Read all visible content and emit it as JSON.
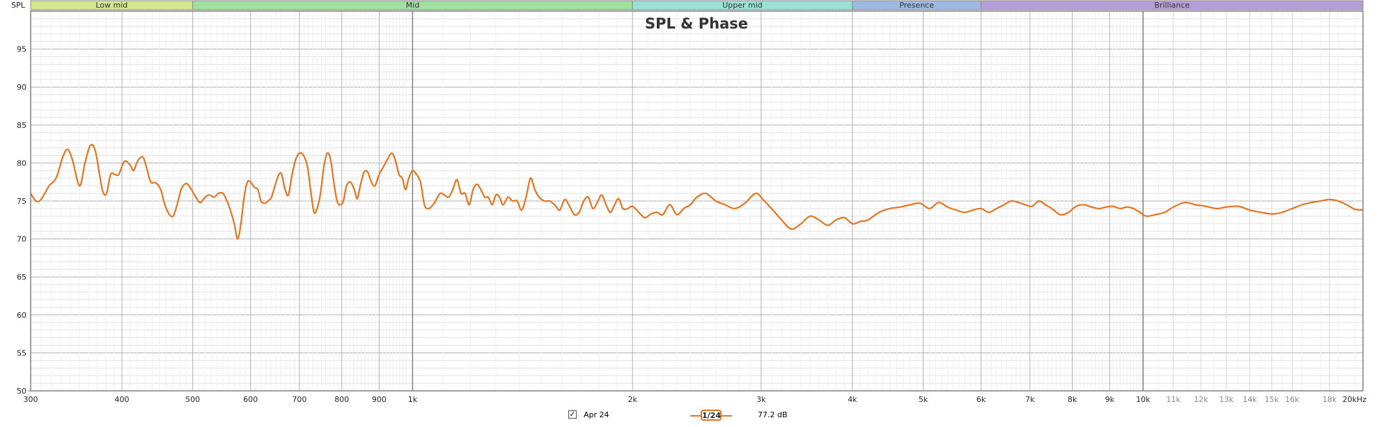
{
  "colors": {
    "curve": "#e8731f",
    "plot_border": "#808080",
    "grid_major": "#b0b0b0",
    "grid_minor": "#e2e2e2",
    "decade_line": "#808080"
  },
  "bands": [
    {
      "label": "Low mid",
      "from": 300,
      "to": 500,
      "color": "#d4e68e"
    },
    {
      "label": "Mid",
      "from": 500,
      "to": 2000,
      "color": "#9fe0a0"
    },
    {
      "label": "Upper mid",
      "from": 2000,
      "to": 4000,
      "color": "#9ae0d4"
    },
    {
      "label": "Presence",
      "from": 4000,
      "to": 6000,
      "color": "#9eb9e0"
    },
    {
      "label": "Brilliance",
      "from": 6000,
      "to": 20000,
      "color": "#b69ed6"
    }
  ],
  "legend": {
    "checkbox_icon": "checkmark-icon",
    "checked_mark": "✓",
    "series_name": "Apr 24",
    "smoothing": "1/24",
    "level": "77.2 dB"
  },
  "chart_data": {
    "type": "line",
    "title": "SPL & Phase",
    "ylabel": "SPL",
    "xlabel": "",
    "xscale": "log",
    "xlim": [
      300,
      20000
    ],
    "ylim": [
      50,
      100
    ],
    "grid": true,
    "y_ticks": [
      50,
      55,
      60,
      65,
      70,
      75,
      80,
      85,
      90,
      95
    ],
    "x_ticks": [
      {
        "value": 300,
        "label": "300",
        "style": "main"
      },
      {
        "value": 400,
        "label": "400",
        "style": "main"
      },
      {
        "value": 500,
        "label": "500",
        "style": "main"
      },
      {
        "value": 600,
        "label": "600",
        "style": "main"
      },
      {
        "value": 700,
        "label": "700",
        "style": "main"
      },
      {
        "value": 800,
        "label": "800",
        "style": "main"
      },
      {
        "value": 900,
        "label": "900",
        "style": "main"
      },
      {
        "value": 1000,
        "label": "1k",
        "style": "main"
      },
      {
        "value": 2000,
        "label": "2k",
        "style": "main"
      },
      {
        "value": 3000,
        "label": "3k",
        "style": "main"
      },
      {
        "value": 4000,
        "label": "4k",
        "style": "main"
      },
      {
        "value": 5000,
        "label": "5k",
        "style": "main"
      },
      {
        "value": 6000,
        "label": "6k",
        "style": "main"
      },
      {
        "value": 7000,
        "label": "7k",
        "style": "main"
      },
      {
        "value": 8000,
        "label": "8k",
        "style": "main"
      },
      {
        "value": 9000,
        "label": "9k",
        "style": "main"
      },
      {
        "value": 10000,
        "label": "10k",
        "style": "main"
      },
      {
        "value": 11000,
        "label": "11k",
        "style": "minor"
      },
      {
        "value": 12000,
        "label": "12k",
        "style": "minor"
      },
      {
        "value": 13000,
        "label": "13k",
        "style": "minor"
      },
      {
        "value": 14000,
        "label": "14k",
        "style": "minor"
      },
      {
        "value": 15000,
        "label": "15k",
        "style": "minor"
      },
      {
        "value": 16000,
        "label": "16k",
        "style": "minor"
      },
      {
        "value": 18000,
        "label": "18k",
        "style": "minor"
      },
      {
        "value": 20000,
        "label": "20kHz",
        "style": "main"
      }
    ],
    "series": [
      {
        "name": "Apr 24",
        "color": "#e8731f",
        "points": [
          [
            300,
            76.0
          ],
          [
            305,
            75.0
          ],
          [
            310,
            75.2
          ],
          [
            318,
            77.0
          ],
          [
            325,
            78.0
          ],
          [
            332,
            80.8
          ],
          [
            337,
            81.8
          ],
          [
            342,
            80.5
          ],
          [
            350,
            77.0
          ],
          [
            356,
            80.0
          ],
          [
            362,
            82.3
          ],
          [
            368,
            81.5
          ],
          [
            376,
            76.5
          ],
          [
            381,
            76.0
          ],
          [
            386,
            78.5
          ],
          [
            391,
            78.5
          ],
          [
            396,
            78.5
          ],
          [
            403,
            80.2
          ],
          [
            410,
            79.8
          ],
          [
            415,
            79.0
          ],
          [
            420,
            80.2
          ],
          [
            427,
            80.8
          ],
          [
            432,
            79.5
          ],
          [
            438,
            77.5
          ],
          [
            445,
            77.4
          ],
          [
            452,
            76.5
          ],
          [
            458,
            74.5
          ],
          [
            464,
            73.3
          ],
          [
            470,
            73.0
          ],
          [
            476,
            74.5
          ],
          [
            482,
            76.5
          ],
          [
            490,
            77.3
          ],
          [
            498,
            76.5
          ],
          [
            505,
            75.5
          ],
          [
            512,
            74.8
          ],
          [
            520,
            75.5
          ],
          [
            527,
            75.8
          ],
          [
            535,
            75.5
          ],
          [
            542,
            76.0
          ],
          [
            550,
            76.0
          ],
          [
            557,
            75.0
          ],
          [
            563,
            73.8
          ],
          [
            570,
            72.0
          ],
          [
            576,
            70.0
          ],
          [
            582,
            72.0
          ],
          [
            588,
            75.5
          ],
          [
            594,
            77.5
          ],
          [
            600,
            77.5
          ],
          [
            607,
            76.8
          ],
          [
            614,
            76.5
          ],
          [
            620,
            75.0
          ],
          [
            627,
            74.7
          ],
          [
            634,
            75.0
          ],
          [
            641,
            75.5
          ],
          [
            648,
            77.0
          ],
          [
            656,
            78.5
          ],
          [
            662,
            78.5
          ],
          [
            669,
            76.5
          ],
          [
            676,
            75.8
          ],
          [
            684,
            78.5
          ],
          [
            692,
            80.5
          ],
          [
            700,
            81.3
          ],
          [
            709,
            81.0
          ],
          [
            718,
            79.5
          ],
          [
            726,
            76.0
          ],
          [
            733,
            73.5
          ],
          [
            740,
            74.0
          ],
          [
            748,
            76.0
          ],
          [
            756,
            79.5
          ],
          [
            764,
            81.3
          ],
          [
            772,
            80.5
          ],
          [
            780,
            77.5
          ],
          [
            788,
            75.0
          ],
          [
            796,
            74.5
          ],
          [
            804,
            75.0
          ],
          [
            812,
            77.0
          ],
          [
            822,
            77.5
          ],
          [
            832,
            76.5
          ],
          [
            840,
            75.3
          ],
          [
            848,
            77.0
          ],
          [
            858,
            78.8
          ],
          [
            868,
            78.8
          ],
          [
            878,
            77.5
          ],
          [
            888,
            77.0
          ],
          [
            900,
            78.5
          ],
          [
            912,
            79.5
          ],
          [
            924,
            80.5
          ],
          [
            936,
            81.3
          ],
          [
            946,
            80.5
          ],
          [
            958,
            78.5
          ],
          [
            968,
            78.0
          ],
          [
            978,
            76.5
          ],
          [
            988,
            78.0
          ],
          [
            1000,
            79.0
          ],
          [
            1012,
            78.5
          ],
          [
            1025,
            77.5
          ],
          [
            1038,
            74.5
          ],
          [
            1050,
            74.0
          ],
          [
            1062,
            74.3
          ],
          [
            1075,
            75.0
          ],
          [
            1090,
            76.0
          ],
          [
            1105,
            75.8
          ],
          [
            1120,
            75.5
          ],
          [
            1135,
            76.5
          ],
          [
            1150,
            77.8
          ],
          [
            1165,
            76.0
          ],
          [
            1180,
            76.0
          ],
          [
            1195,
            74.5
          ],
          [
            1210,
            76.5
          ],
          [
            1225,
            77.2
          ],
          [
            1240,
            76.5
          ],
          [
            1255,
            75.5
          ],
          [
            1270,
            75.5
          ],
          [
            1285,
            74.5
          ],
          [
            1300,
            75.8
          ],
          [
            1315,
            75.5
          ],
          [
            1330,
            74.5
          ],
          [
            1350,
            75.5
          ],
          [
            1370,
            75.0
          ],
          [
            1390,
            75.0
          ],
          [
            1410,
            73.8
          ],
          [
            1430,
            75.5
          ],
          [
            1450,
            78.0
          ],
          [
            1470,
            76.5
          ],
          [
            1490,
            75.5
          ],
          [
            1515,
            75.0
          ],
          [
            1540,
            75.0
          ],
          [
            1565,
            74.5
          ],
          [
            1590,
            73.8
          ],
          [
            1615,
            75.2
          ],
          [
            1640,
            74.3
          ],
          [
            1665,
            73.2
          ],
          [
            1690,
            73.5
          ],
          [
            1715,
            75.0
          ],
          [
            1740,
            75.5
          ],
          [
            1765,
            74.0
          ],
          [
            1790,
            74.8
          ],
          [
            1815,
            75.8
          ],
          [
            1840,
            74.5
          ],
          [
            1865,
            73.5
          ],
          [
            1890,
            74.5
          ],
          [
            1915,
            75.3
          ],
          [
            1940,
            74.0
          ],
          [
            1970,
            74.0
          ],
          [
            2000,
            74.3
          ],
          [
            2040,
            73.5
          ],
          [
            2080,
            72.8
          ],
          [
            2120,
            73.3
          ],
          [
            2160,
            73.5
          ],
          [
            2200,
            73.2
          ],
          [
            2250,
            74.5
          ],
          [
            2300,
            73.2
          ],
          [
            2350,
            74.0
          ],
          [
            2400,
            74.5
          ],
          [
            2450,
            75.5
          ],
          [
            2520,
            76.0
          ],
          [
            2600,
            75.0
          ],
          [
            2680,
            74.5
          ],
          [
            2760,
            74.0
          ],
          [
            2850,
            74.7
          ],
          [
            2950,
            76.0
          ],
          [
            3030,
            75.0
          ],
          [
            3100,
            74.0
          ],
          [
            3200,
            72.5
          ],
          [
            3300,
            71.3
          ],
          [
            3400,
            72.0
          ],
          [
            3500,
            73.0
          ],
          [
            3600,
            72.5
          ],
          [
            3700,
            71.8
          ],
          [
            3800,
            72.5
          ],
          [
            3900,
            72.8
          ],
          [
            4000,
            72.0
          ],
          [
            4100,
            72.3
          ],
          [
            4200,
            72.5
          ],
          [
            4350,
            73.5
          ],
          [
            4500,
            74.0
          ],
          [
            4650,
            74.2
          ],
          [
            4800,
            74.5
          ],
          [
            4950,
            74.7
          ],
          [
            5100,
            74.0
          ],
          [
            5250,
            74.8
          ],
          [
            5400,
            74.2
          ],
          [
            5550,
            73.8
          ],
          [
            5700,
            73.5
          ],
          [
            5850,
            73.8
          ],
          [
            6000,
            74.0
          ],
          [
            6150,
            73.5
          ],
          [
            6300,
            74.0
          ],
          [
            6450,
            74.5
          ],
          [
            6600,
            75.0
          ],
          [
            6750,
            74.8
          ],
          [
            6900,
            74.5
          ],
          [
            7050,
            74.3
          ],
          [
            7200,
            75.0
          ],
          [
            7350,
            74.5
          ],
          [
            7500,
            74.0
          ],
          [
            7700,
            73.2
          ],
          [
            7900,
            73.5
          ],
          [
            8100,
            74.3
          ],
          [
            8300,
            74.5
          ],
          [
            8500,
            74.2
          ],
          [
            8700,
            74.0
          ],
          [
            8900,
            74.2
          ],
          [
            9100,
            74.3
          ],
          [
            9300,
            74.0
          ],
          [
            9500,
            74.2
          ],
          [
            9700,
            74.0
          ],
          [
            9900,
            73.5
          ],
          [
            10100,
            73.0
          ],
          [
            10400,
            73.2
          ],
          [
            10700,
            73.5
          ],
          [
            11000,
            74.2
          ],
          [
            11400,
            74.8
          ],
          [
            11800,
            74.5
          ],
          [
            12200,
            74.3
          ],
          [
            12600,
            74.0
          ],
          [
            13000,
            74.2
          ],
          [
            13500,
            74.3
          ],
          [
            14000,
            73.8
          ],
          [
            14500,
            73.5
          ],
          [
            15000,
            73.3
          ],
          [
            15500,
            73.5
          ],
          [
            16000,
            74.0
          ],
          [
            16500,
            74.5
          ],
          [
            17000,
            74.8
          ],
          [
            17500,
            75.0
          ],
          [
            18000,
            75.2
          ],
          [
            18500,
            75.0
          ],
          [
            19000,
            74.5
          ],
          [
            19500,
            73.9
          ],
          [
            20000,
            73.8
          ]
        ]
      }
    ]
  }
}
